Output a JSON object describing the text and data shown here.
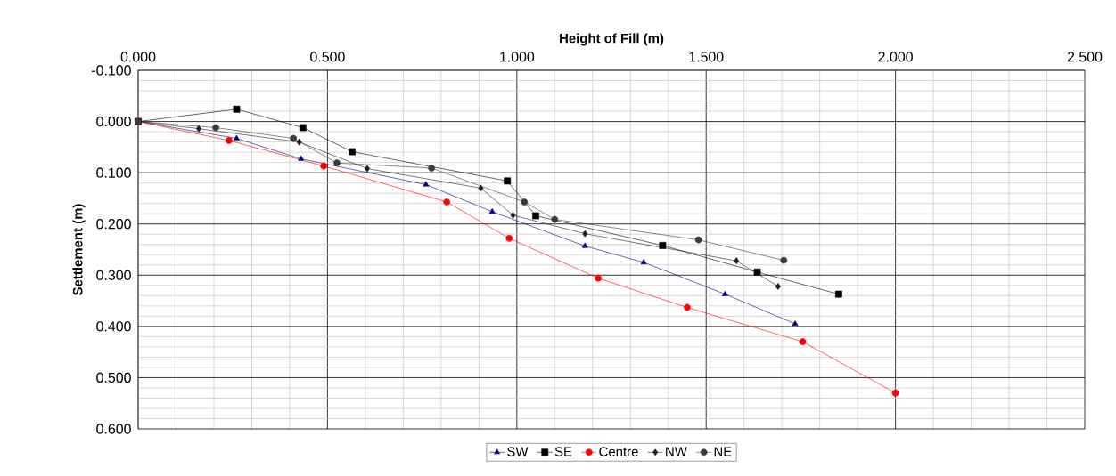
{
  "chart_data": {
    "type": "line",
    "xlabel": "Height of Fill (m)",
    "ylabel": "Settlement (m)",
    "xlim": [
      0,
      2.5
    ],
    "ylim": [
      0.6,
      -0.1
    ],
    "xticks": [
      {
        "value": 0,
        "label": "0.000"
      },
      {
        "value": 0.5,
        "label": "0.500"
      },
      {
        "value": 1,
        "label": "1.000"
      },
      {
        "value": 1.5,
        "label": "1.500"
      },
      {
        "value": 2,
        "label": "2.000"
      },
      {
        "value": 2.5,
        "label": "2.500"
      }
    ],
    "yticks": [
      {
        "value": -0.1,
        "label": "-0.100"
      },
      {
        "value": 0,
        "label": "0.000"
      },
      {
        "value": 0.1,
        "label": "0.100"
      },
      {
        "value": 0.2,
        "label": "0.200"
      },
      {
        "value": 0.3,
        "label": "0.300"
      },
      {
        "value": 0.4,
        "label": "0.400"
      },
      {
        "value": 0.5,
        "label": "0.500"
      },
      {
        "value": 0.6,
        "label": "0.600"
      }
    ],
    "grid": true,
    "legend": "bottom",
    "line_style": "solid",
    "series": [
      {
        "name": "SW",
        "color": "#000080",
        "marker": "triangle",
        "x": [
          0,
          0.26,
          0.43,
          0.76,
          0.935,
          1.18,
          1.335,
          1.55,
          1.735
        ],
        "values": [
          0,
          0.033,
          0.073,
          0.123,
          0.176,
          0.243,
          0.275,
          0.337,
          0.395
        ]
      },
      {
        "name": "SE",
        "color": "#000000",
        "marker": "square",
        "x": [
          0,
          0.26,
          0.435,
          0.565,
          0.975,
          1.05,
          1.385,
          1.635,
          1.85
        ],
        "values": [
          0,
          -0.024,
          0.012,
          0.059,
          0.116,
          0.184,
          0.242,
          0.294,
          0.337
        ]
      },
      {
        "name": "Centre",
        "color": "#ff0000",
        "marker": "circle",
        "x": [
          0,
          0.24,
          0.49,
          0.815,
          0.98,
          1.215,
          1.45,
          1.755,
          2.0
        ],
        "values": [
          0,
          0.037,
          0.087,
          0.157,
          0.228,
          0.306,
          0.363,
          0.43,
          0.53
        ]
      },
      {
        "name": "NW",
        "color": "#202020",
        "marker": "diamond",
        "x": [
          0,
          0.16,
          0.425,
          0.605,
          0.905,
          0.99,
          1.18,
          1.58,
          1.69
        ],
        "values": [
          0,
          0.014,
          0.04,
          0.092,
          0.13,
          0.183,
          0.219,
          0.272,
          0.322
        ]
      },
      {
        "name": "NE",
        "color": "#3a3a3a",
        "marker": "circle",
        "x": [
          0,
          0.205,
          0.41,
          0.525,
          0.775,
          1.02,
          1.1,
          1.48,
          1.705
        ],
        "values": [
          0,
          0.012,
          0.033,
          0.081,
          0.091,
          0.157,
          0.191,
          0.231,
          0.271
        ]
      }
    ]
  }
}
